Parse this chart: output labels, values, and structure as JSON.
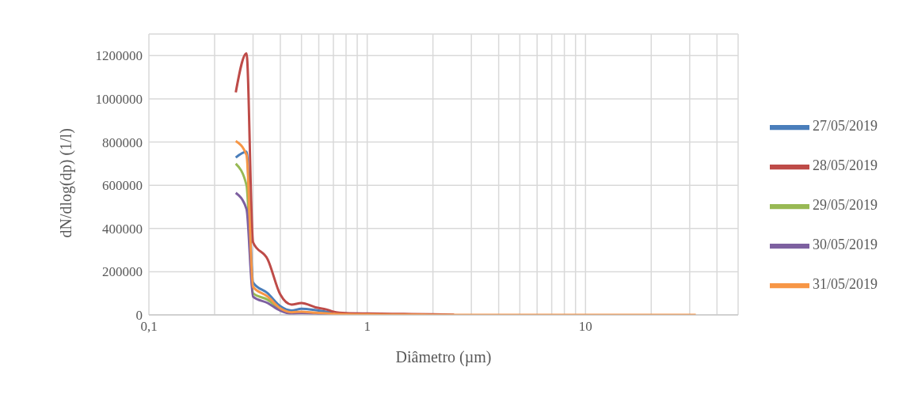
{
  "chart_data": {
    "type": "line",
    "xlabel": "Diâmetro (µm)",
    "ylabel": "dN/dlog(dp) (1/l)",
    "log": "x",
    "grid": true,
    "legend": "right",
    "marker": "none",
    "line_style": "solid",
    "x": [
      0.25,
      0.28,
      0.3,
      0.35,
      0.4,
      0.45,
      0.5,
      0.58,
      0.65,
      0.7,
      0.8,
      1,
      1.3,
      1.6,
      2,
      2.5,
      3,
      3.5,
      4,
      5,
      6.5,
      7.5,
      8.5,
      10,
      12.5,
      15,
      17.5,
      20,
      25,
      30,
      32
    ],
    "xlim": [
      0.1,
      50
    ],
    "xticks": [
      {
        "value": 0.1,
        "label": "0,1"
      },
      {
        "value": 0.2,
        "label": null
      },
      {
        "value": 0.3,
        "label": null
      },
      {
        "value": 0.4,
        "label": null
      },
      {
        "value": 0.5,
        "label": null
      },
      {
        "value": 0.6,
        "label": null
      },
      {
        "value": 0.7,
        "label": null
      },
      {
        "value": 0.8,
        "label": null
      },
      {
        "value": 0.9,
        "label": null
      },
      1,
      {
        "value": 2,
        "label": null
      },
      {
        "value": 3,
        "label": null
      },
      {
        "value": 4,
        "label": null
      },
      {
        "value": 5,
        "label": null
      },
      {
        "value": 6,
        "label": null
      },
      {
        "value": 7,
        "label": null
      },
      {
        "value": 8,
        "label": null
      },
      {
        "value": 9,
        "label": null
      },
      10,
      {
        "value": 20,
        "label": null
      },
      {
        "value": 30,
        "label": null
      },
      {
        "value": 40,
        "label": null
      }
    ],
    "ylim": [
      0,
      1300000
    ],
    "yticks": [
      0,
      200000,
      400000,
      600000,
      800000,
      1000000,
      1200000
    ],
    "series": [
      {
        "name": "27/05/2019",
        "color": "#4a7ebb",
        "values": [
          728000,
          755000,
          150000,
          100000,
          40000,
          20000,
          28000,
          22000,
          15000,
          10000,
          null,
          null,
          null,
          null,
          null,
          null,
          null,
          null,
          null,
          null,
          null,
          null,
          null,
          null,
          null,
          null,
          null,
          null,
          null,
          null,
          null
        ]
      },
      {
        "name": "28/05/2019",
        "color": "#be4b48",
        "values": [
          1030000,
          1210000,
          336000,
          257000,
          94000,
          48000,
          55000,
          35000,
          25000,
          15000,
          8000,
          6000,
          5000,
          4000,
          3000,
          1000,
          null,
          null,
          null,
          null,
          null,
          null,
          null,
          null,
          null,
          null,
          null,
          null,
          null,
          null,
          null
        ]
      },
      {
        "name": "29/05/2019",
        "color": "#98b954",
        "values": [
          700000,
          600000,
          100000,
          70000,
          25000,
          null,
          null,
          null,
          null,
          null,
          null,
          null,
          null,
          null,
          null,
          null,
          null,
          null,
          null,
          null,
          null,
          null,
          null,
          null,
          null,
          null,
          null,
          null,
          null,
          null,
          null
        ]
      },
      {
        "name": "30/05/2019",
        "color": "#7d60a0",
        "values": [
          565000,
          490000,
          85000,
          55000,
          20000,
          6000,
          8000,
          6000,
          4000,
          3000,
          null,
          null,
          null,
          null,
          null,
          null,
          null,
          null,
          null,
          null,
          null,
          null,
          null,
          null,
          null,
          null,
          null,
          null,
          null,
          null,
          null
        ]
      },
      {
        "name": "31/05/2019",
        "color": "#f79646",
        "values": [
          805000,
          740000,
          130000,
          85000,
          30000,
          12000,
          15000,
          10000,
          7000,
          5000,
          3000,
          2000,
          1000,
          1000,
          0,
          0,
          0,
          0,
          0,
          0,
          0,
          0,
          0,
          0,
          0,
          0,
          0,
          0,
          0,
          0,
          0
        ]
      }
    ]
  }
}
